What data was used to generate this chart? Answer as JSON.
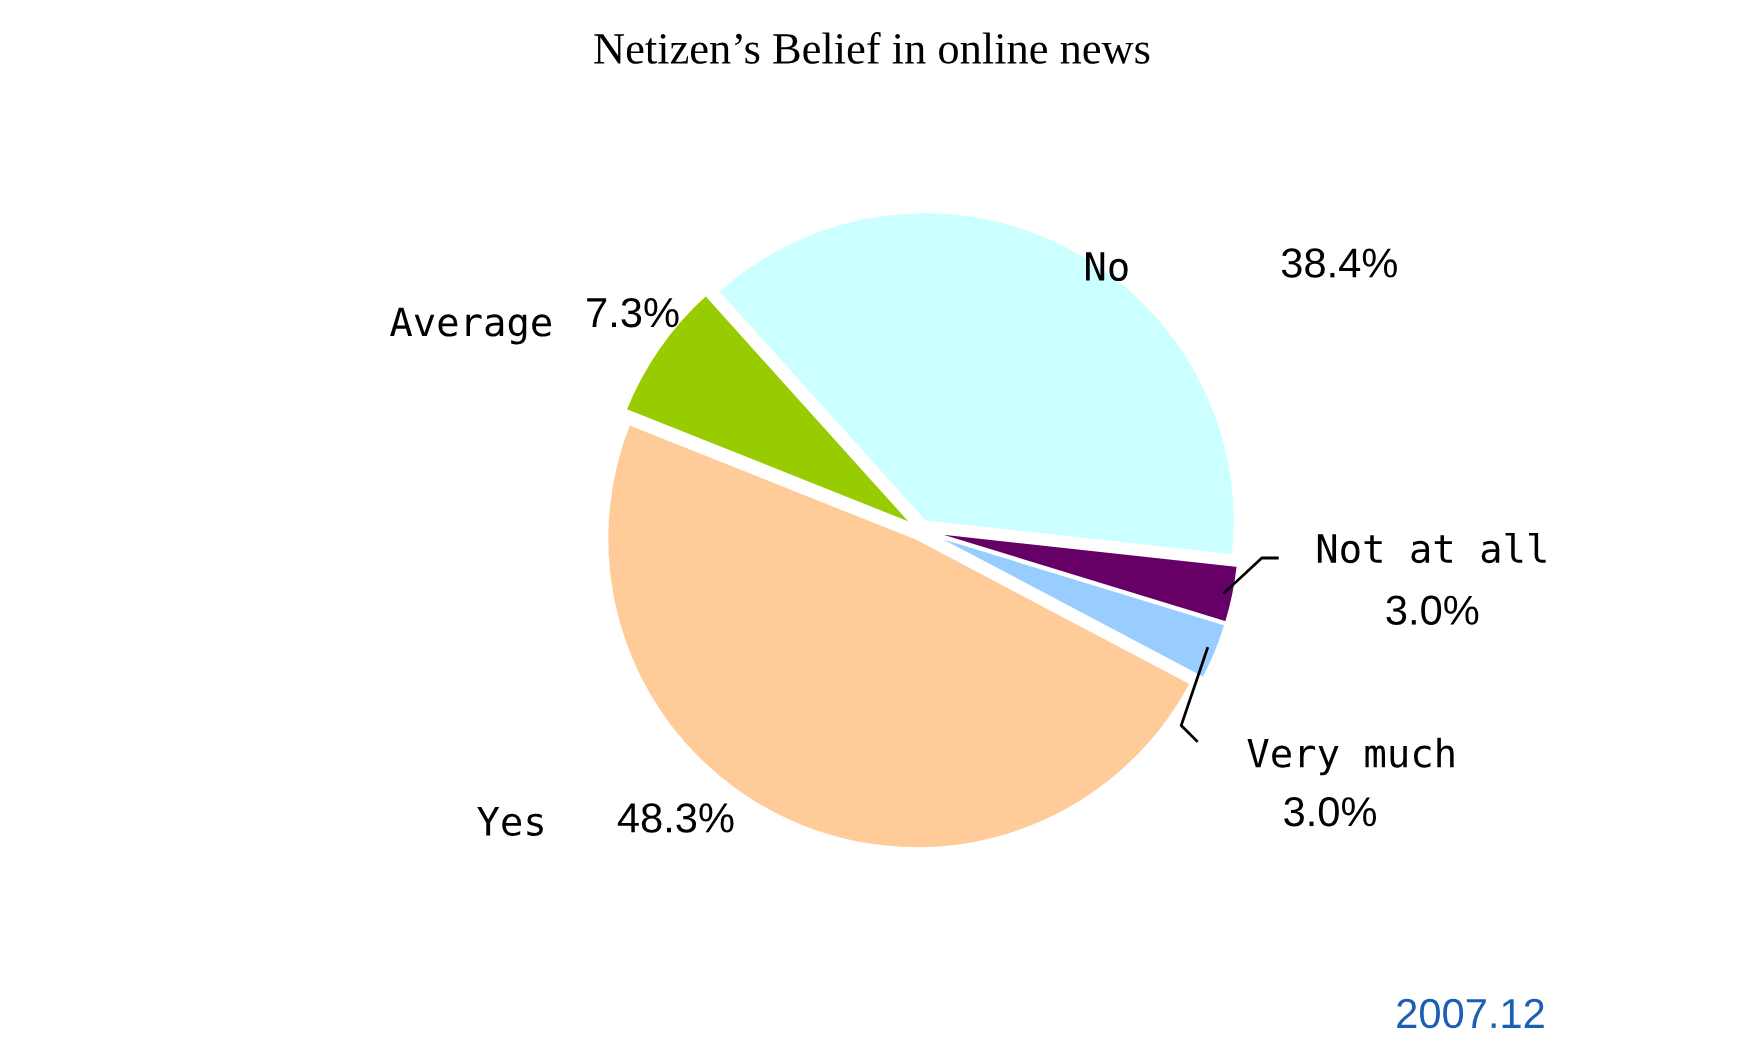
{
  "chart_data": {
    "type": "pie",
    "title": "Netizen’s Belief in online news",
    "categories": [
      "No",
      "Not at all",
      "Very much",
      "Yes",
      "Average"
    ],
    "values": [
      38.4,
      3.0,
      3.0,
      48.3,
      7.3
    ],
    "colors": [
      "#ccffff",
      "#660066",
      "#99ccff",
      "#ffcc99",
      "#99cc00"
    ],
    "value_labels": [
      "38.4%",
      "3.0%",
      "3.0%",
      "48.3%",
      "7.3%"
    ],
    "annotations": [
      "2007.12"
    ]
  }
}
